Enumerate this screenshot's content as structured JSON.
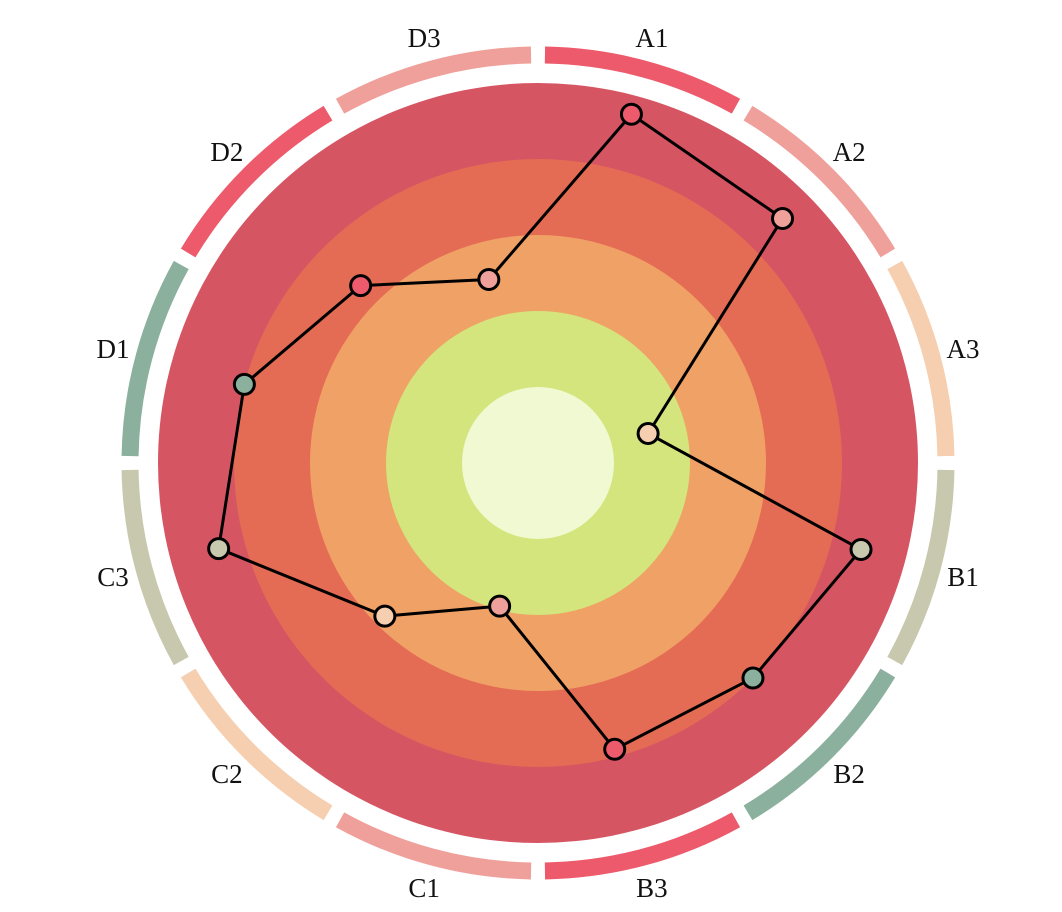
{
  "chart_data": {
    "type": "radar",
    "title": "",
    "categories": [
      "A1",
      "A2",
      "A3",
      "B1",
      "B2",
      "B3",
      "C1",
      "C2",
      "C3",
      "D1",
      "D2",
      "D3"
    ],
    "values": [
      0.95,
      0.91,
      0.3,
      0.88,
      0.8,
      0.78,
      0.39,
      0.57,
      0.87,
      0.8,
      0.66,
      0.5
    ],
    "radial_range": [
      0,
      1
    ],
    "grid": true,
    "legend": "none",
    "marker_colors": [
      "#ec5a6c",
      "#f0a09b",
      "#f5cfb0",
      "#c8c8ae",
      "#8cb09e",
      "#ec5a6c",
      "#f0a09b",
      "#f5cfb0",
      "#c8c8ae",
      "#8cb09e",
      "#ec5a6c",
      "#f0a09b"
    ],
    "bands": [
      {
        "outer": 0.2,
        "color": "#f1f9d2"
      },
      {
        "outer": 0.4,
        "color": "#d3e57c"
      },
      {
        "outer": 0.6,
        "color": "#f0a166"
      },
      {
        "outer": 0.8,
        "color": "#e56c54"
      },
      {
        "outer": 1.0,
        "color": "#d65563"
      }
    ],
    "line_color": "#000000",
    "marker_edge_color": "#000000"
  }
}
